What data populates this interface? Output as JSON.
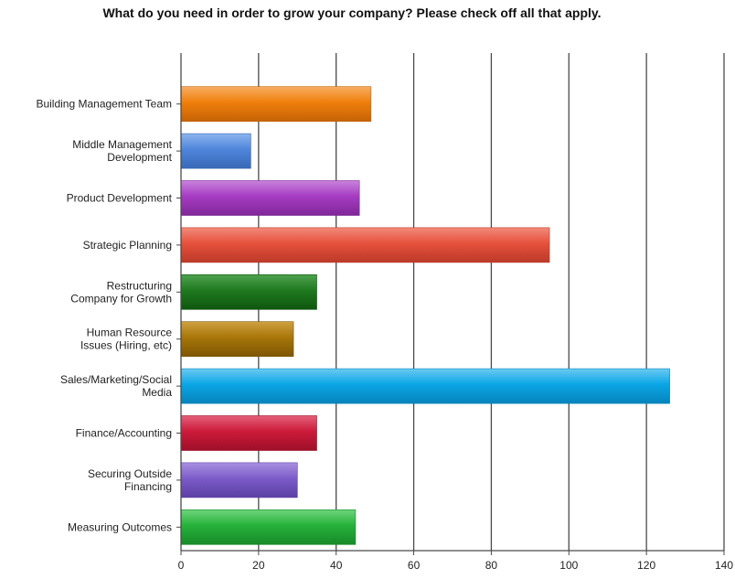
{
  "chart_data": {
    "type": "bar",
    "orientation": "horizontal",
    "title": "What do you need in order to grow your company?  Please check off all that apply.",
    "xlabel": "",
    "ylabel": "",
    "xlim": [
      0,
      140
    ],
    "x_ticks": [
      0,
      20,
      40,
      60,
      80,
      100,
      120,
      140
    ],
    "grid": "vertical",
    "categories": [
      {
        "lines": [
          "Building Management Team"
        ],
        "value": 49,
        "color": "#f07f0c",
        "light": "#f7ad62",
        "dark": "#c56305"
      },
      {
        "lines": [
          "Middle Management",
          "Development"
        ],
        "value": 18,
        "color": "#4f86db",
        "light": "#8db4ee",
        "dark": "#3868b6"
      },
      {
        "lines": [
          "Product Development"
        ],
        "value": 46,
        "color": "#a63cc3",
        "light": "#c983dc",
        "dark": "#7f2797"
      },
      {
        "lines": [
          "Strategic Planning"
        ],
        "value": 95,
        "color": "#e6513c",
        "light": "#f28a7a",
        "dark": "#bb3a28"
      },
      {
        "lines": [
          "Restructuring",
          "Company for Growth"
        ],
        "value": 35,
        "color": "#1f7a1f",
        "light": "#4ea24e",
        "dark": "#0f560f"
      },
      {
        "lines": [
          "Human Resource",
          "Issues (Hiring, etc)"
        ],
        "value": 29,
        "color": "#a87609",
        "light": "#cfa040",
        "dark": "#7d5603"
      },
      {
        "lines": [
          "Sales/Marketing/Social",
          "Media"
        ],
        "value": 126,
        "color": "#0aa6e6",
        "light": "#6ccaf2",
        "dark": "#0683ba"
      },
      {
        "lines": [
          "Finance/Accounting"
        ],
        "value": 35,
        "color": "#cc1b3b",
        "light": "#e45f77",
        "dark": "#9e0f28"
      },
      {
        "lines": [
          "Securing Outside",
          "Financing"
        ],
        "value": 30,
        "color": "#7c5cc9",
        "light": "#a890e0",
        "dark": "#5b3fa3"
      },
      {
        "lines": [
          "Measuring Outcomes"
        ],
        "value": 45,
        "color": "#26b23a",
        "light": "#6fd57c",
        "dark": "#188a29"
      }
    ]
  }
}
